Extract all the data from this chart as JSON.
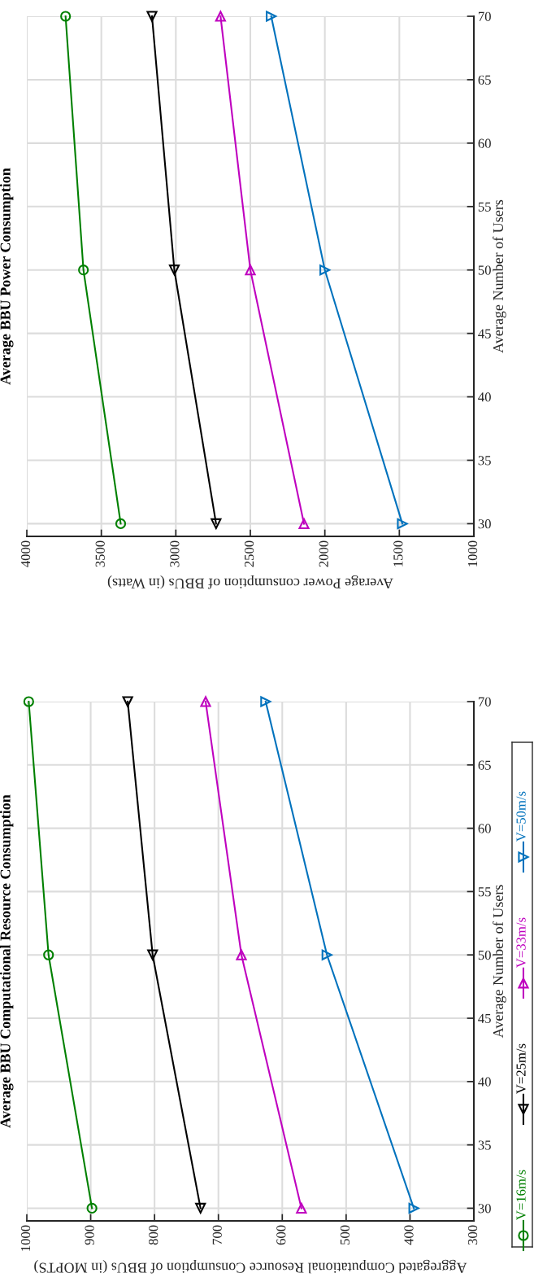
{
  "chart_data": [
    {
      "type": "line",
      "title": "Average BBU Computational Resource Consumption",
      "xlabel": "Aggregated Computational Resource Consumption of BBUs (in MOPTS)",
      "ylabel": "Average Number of Users",
      "xlim": [
        1000,
        300
      ],
      "xticks": [
        1000,
        900,
        800,
        700,
        600,
        500,
        400,
        300
      ],
      "ylim": [
        29,
        70
      ],
      "yticks": [
        30,
        35,
        40,
        45,
        50,
        55,
        60,
        65,
        70
      ],
      "grid": true,
      "legend": "right",
      "series": [
        {
          "name": "V=16m/s",
          "color": "#008000",
          "marker": "circle",
          "x": [
            898,
            966,
            997
          ],
          "values": [
            30,
            50,
            70
          ]
        },
        {
          "name": "V=25m/s",
          "color": "#000000",
          "marker": "triangle-down",
          "x": [
            728,
            803,
            842
          ],
          "values": [
            30,
            50,
            70
          ]
        },
        {
          "name": "V=33m/s",
          "color": "#bf00bf",
          "marker": "triangle-up",
          "x": [
            570,
            664,
            720
          ],
          "values": [
            30,
            50,
            70
          ]
        },
        {
          "name": "V=50m/s",
          "color": "#0072bd",
          "marker": "triangle-right",
          "x": [
            394,
            530,
            626
          ],
          "values": [
            30,
            50,
            70
          ]
        }
      ]
    },
    {
      "type": "line",
      "title": "Average BBU Power Consumption",
      "xlabel": "Average Power consumption of BBUs (in Watts)",
      "ylabel": "Average Number of Users",
      "xlim": [
        4000,
        1000
      ],
      "xticks": [
        4000,
        3500,
        3000,
        2500,
        2000,
        1500,
        1000
      ],
      "ylim": [
        29,
        70
      ],
      "yticks": [
        30,
        35,
        40,
        45,
        50,
        55,
        60,
        65,
        70
      ],
      "grid": true,
      "series": [
        {
          "color": "#008000",
          "marker": "circle",
          "x": [
            3370,
            3620,
            3740
          ],
          "values": [
            30,
            50,
            70
          ]
        },
        {
          "color": "#000000",
          "marker": "triangle-down",
          "x": [
            2730,
            3010,
            3160
          ],
          "values": [
            30,
            50,
            70
          ]
        },
        {
          "color": "#bf00bf",
          "marker": "triangle-up",
          "x": [
            2140,
            2500,
            2700
          ],
          "values": [
            30,
            50,
            70
          ]
        },
        {
          "color": "#0072bd",
          "marker": "triangle-right",
          "x": [
            1480,
            2000,
            2360
          ],
          "values": [
            30,
            50,
            70
          ]
        }
      ]
    }
  ]
}
